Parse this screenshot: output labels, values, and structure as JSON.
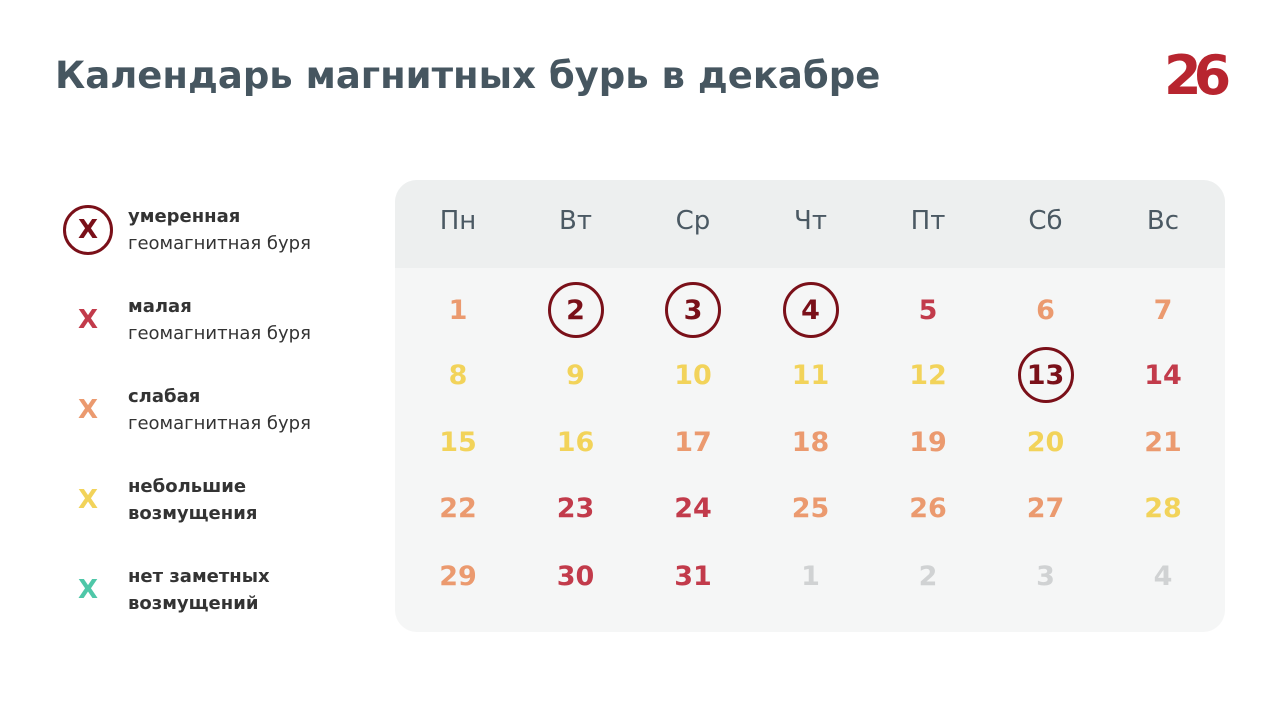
{
  "header": {
    "title": "Календарь магнитных бурь в декабре",
    "logo": "26"
  },
  "legend": [
    {
      "marker": "X",
      "line1": "умеренная",
      "line2": "геомагнитная буря",
      "color": "#7a1019",
      "circled": true
    },
    {
      "marker": "X",
      "line1": "малая",
      "line2": "геомагнитная буря",
      "color": "#c23b4b",
      "circled": false
    },
    {
      "marker": "X",
      "line1": "слабая",
      "line2": "геомагнитная буря",
      "color": "#eb9a6f",
      "circled": false
    },
    {
      "marker": "X",
      "line1": "небольшие",
      "line2": "возмущения",
      "color": "#f2d35a",
      "circled": false
    },
    {
      "marker": "X",
      "line1": "нет заметных",
      "line2": "возмущений",
      "color": "#4fc7a8",
      "circled": false
    }
  ],
  "calendar": {
    "weekdays": [
      "Пн",
      "Вт",
      "Ср",
      "Чт",
      "Пт",
      "Сб",
      "Вс"
    ],
    "rows": [
      [
        {
          "text": "1",
          "color": "#eb9a6f"
        },
        {
          "text": "2",
          "color": "#7a1019",
          "circled": true
        },
        {
          "text": "3",
          "color": "#7a1019",
          "circled": true
        },
        {
          "text": "4",
          "color": "#7a1019",
          "circled": true
        },
        {
          "text": "5",
          "color": "#c23b4b"
        },
        {
          "text": "6",
          "color": "#eb9a6f"
        },
        {
          "text": "7",
          "color": "#eb9a6f"
        }
      ],
      [
        {
          "text": "8",
          "color": "#f2d35a"
        },
        {
          "text": "9",
          "color": "#f2d35a"
        },
        {
          "text": "10",
          "color": "#f2d35a"
        },
        {
          "text": "11",
          "color": "#f2d35a"
        },
        {
          "text": "12",
          "color": "#f2d35a"
        },
        {
          "text": "13",
          "color": "#7a1019",
          "circled": true
        },
        {
          "text": "14",
          "color": "#c23b4b"
        }
      ],
      [
        {
          "text": "15",
          "color": "#f2d35a"
        },
        {
          "text": "16",
          "color": "#f2d35a"
        },
        {
          "text": "17",
          "color": "#eb9a6f"
        },
        {
          "text": "18",
          "color": "#eb9a6f"
        },
        {
          "text": "19",
          "color": "#eb9a6f"
        },
        {
          "text": "20",
          "color": "#f2d35a"
        },
        {
          "text": "21",
          "color": "#eb9a6f"
        }
      ],
      [
        {
          "text": "22",
          "color": "#eb9a6f"
        },
        {
          "text": "23",
          "color": "#c23b4b"
        },
        {
          "text": "24",
          "color": "#c23b4b"
        },
        {
          "text": "25",
          "color": "#eb9a6f"
        },
        {
          "text": "26",
          "color": "#eb9a6f"
        },
        {
          "text": "27",
          "color": "#eb9a6f"
        },
        {
          "text": "28",
          "color": "#f2d35a"
        }
      ],
      [
        {
          "text": "29",
          "color": "#eb9a6f"
        },
        {
          "text": "30",
          "color": "#c23b4b"
        },
        {
          "text": "31",
          "color": "#c23b4b"
        },
        {
          "text": "1",
          "color": "#d0d2d3"
        },
        {
          "text": "2",
          "color": "#d0d2d3"
        },
        {
          "text": "3",
          "color": "#d0d2d3"
        },
        {
          "text": "4",
          "color": "#d0d2d3"
        }
      ]
    ]
  }
}
